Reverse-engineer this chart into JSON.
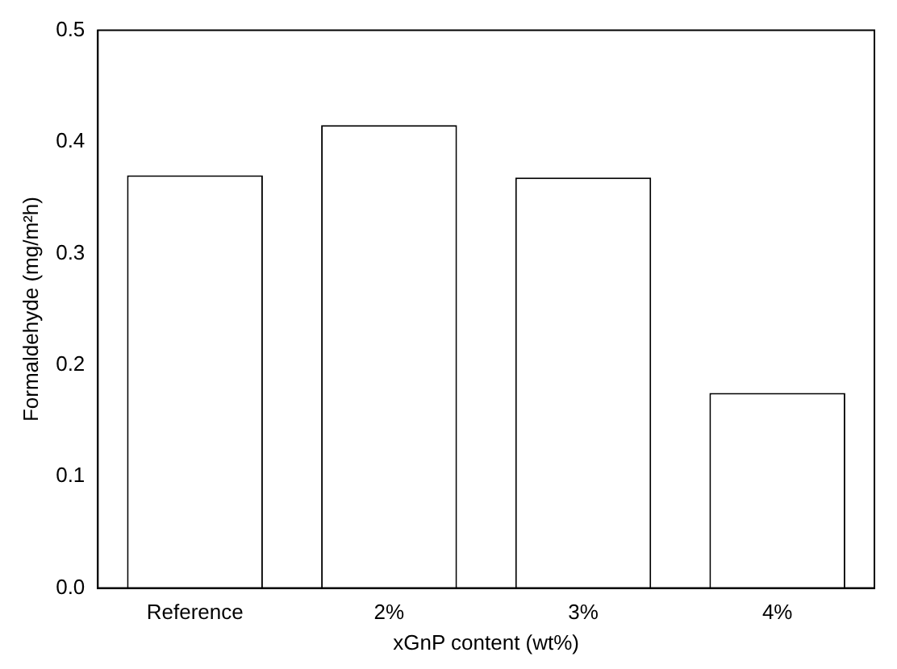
{
  "chart_data": {
    "type": "bar",
    "xlabel": "xGnP content (wt%)",
    "ylabel": "Formaldehyde (mg/m²h)",
    "categories": [
      "Reference",
      "2%",
      "3%",
      "4%"
    ],
    "values": [
      0.37,
      0.415,
      0.368,
      0.175
    ],
    "color": "#ffffff",
    "ylim": [
      0,
      0.5
    ],
    "yticks": [
      {
        "value": 0,
        "label": "0.0"
      },
      0.1,
      0.2,
      0.3,
      0.4,
      0.5
    ],
    "grid": false,
    "legend": false
  }
}
